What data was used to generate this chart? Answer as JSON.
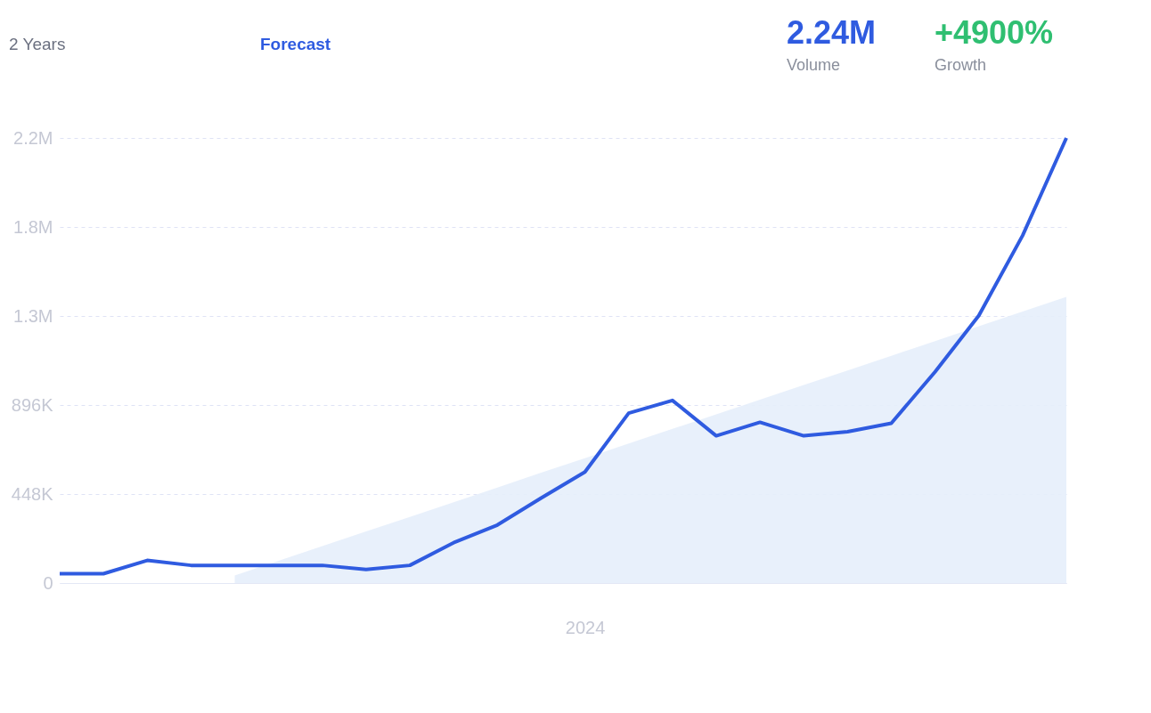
{
  "chart_data": {
    "type": "line",
    "categories": [
      null,
      null,
      null,
      null,
      null,
      null,
      null,
      null,
      null,
      null,
      null,
      null,
      "2024",
      null,
      null,
      null,
      null,
      null,
      null,
      null,
      null,
      null,
      null,
      null
    ],
    "series": [
      {
        "type": "area",
        "color": "#e6eefb",
        "values": [
          null,
          null,
          null,
          null,
          38000,
          112000,
          186000,
          260000,
          333000,
          407000,
          481000,
          555000,
          628000,
          702000,
          776000,
          849000,
          923000,
          997000,
          1070000,
          1144000,
          1218000,
          1292000,
          1366000,
          1440000
        ]
      },
      {
        "color": "#2f5be0",
        "values": [
          47000,
          47000,
          114000,
          89000,
          89000,
          89000,
          89000,
          68000,
          89000,
          203000,
          292000,
          428000,
          559000,
          855000,
          919000,
          741000,
          809000,
          741000,
          762000,
          804000,
          1063000,
          1346000,
          1749000,
          2240000
        ]
      }
    ],
    "ylim": [
      0,
      2240000
    ],
    "yticks": [
      0,
      {
        "value": 448000,
        "label": "448K"
      },
      {
        "value": 896000,
        "label": "896K"
      },
      {
        "value": 1344000,
        "label": "1.3M"
      },
      {
        "value": 1792000,
        "label": "1.8M"
      },
      {
        "value": 2240000,
        "label": "2.2M"
      }
    ],
    "grid": "y",
    "marker": "none",
    "line_style": "solid",
    "annotations": [
      "2 Years",
      "Forecast",
      "2.24M",
      "Volume",
      "+4900%",
      "Growth"
    ]
  }
}
